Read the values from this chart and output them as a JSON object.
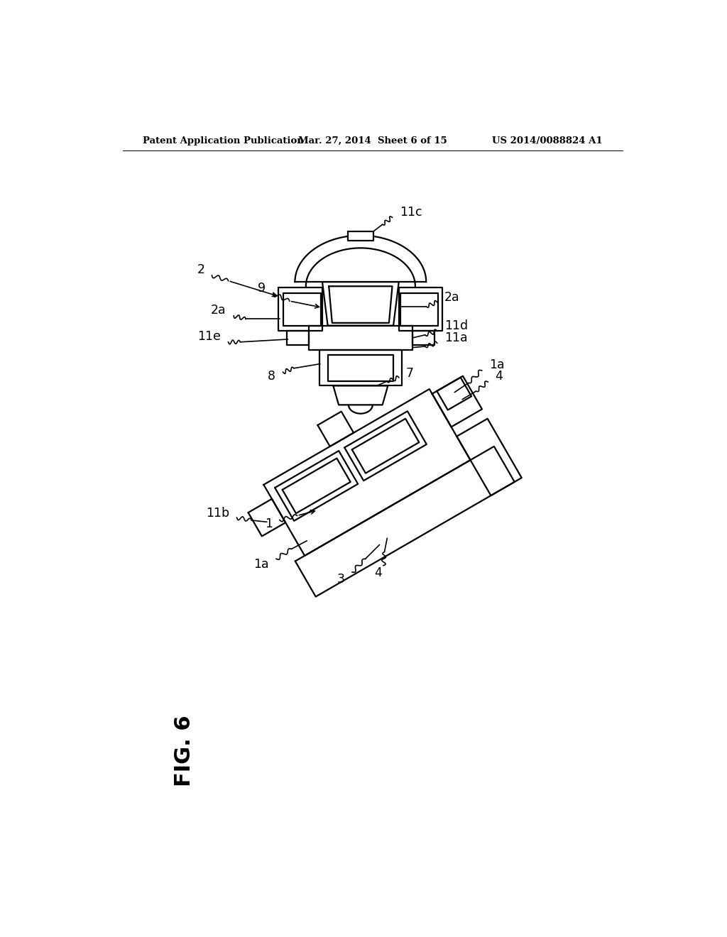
{
  "title_left": "Patent Application Publication",
  "title_center": "Mar. 27, 2014  Sheet 6 of 15",
  "title_right": "US 2014/0088824 A1",
  "fig_label": "FIG. 6",
  "background": "#ffffff",
  "lc": "#000000",
  "lw": 1.6
}
